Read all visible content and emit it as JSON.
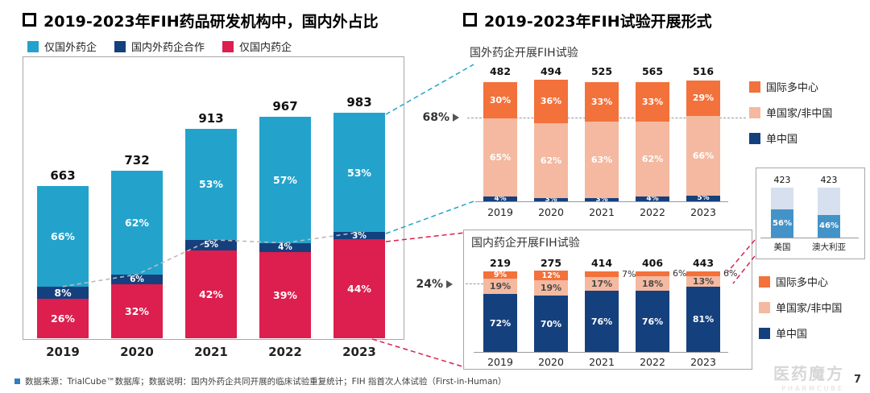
{
  "left_panel": {
    "title": "2019-2023年FIH药品研发机构中，国内外占比",
    "legend": [
      {
        "label": "仅国外药企",
        "color": "#23A3CC"
      },
      {
        "label": "国内外药企合作",
        "color": "#15407E"
      },
      {
        "label": "仅国内药企",
        "color": "#DC1F4E"
      }
    ]
  },
  "right_panel": {
    "title": "2019-2023年FIH试验开展形式",
    "foreign": {
      "subtitle": "国外药企开展FIH试验",
      "callout": "68%",
      "legend": [
        {
          "label": "国际多中心",
          "color": "#F3713B"
        },
        {
          "label": "单国家/非中国",
          "color": "#F4B9A0"
        },
        {
          "label": "单中国",
          "color": "#15407E"
        }
      ]
    },
    "domestic": {
      "subtitle": "国内药企开展FIH试验",
      "callout": "24%",
      "legend": [
        {
          "label": "国际多中心",
          "color": "#F3713B"
        },
        {
          "label": "单国家/非中国",
          "color": "#F4B9A0"
        },
        {
          "label": "单中国",
          "color": "#15407E"
        }
      ]
    }
  },
  "chart_data": [
    {
      "id": "institutions",
      "type": "stacked-bar",
      "title": "2019-2023年FIH药品研发机构中，国内外占比",
      "categories": [
        "2019",
        "2020",
        "2021",
        "2022",
        "2023"
      ],
      "totals": [
        663,
        732,
        913,
        967,
        983
      ],
      "value_unit": "percent",
      "series": [
        {
          "name": "仅国内药企",
          "color": "#DC1F4E",
          "values": [
            26,
            32,
            42,
            39,
            44
          ]
        },
        {
          "name": "国内外药企合作",
          "color": "#15407E",
          "values": [
            8,
            6,
            5,
            4,
            3
          ]
        },
        {
          "name": "仅国外药企",
          "color": "#23A3CC",
          "values": [
            66,
            62,
            53,
            57,
            53
          ]
        }
      ],
      "trend_line": "boundary between 国内外药企合作 and 仅国外药企",
      "legend_position": "top"
    },
    {
      "id": "foreign",
      "type": "stacked-bar-100",
      "title": "国外药企开展FIH试验",
      "categories": [
        "2019",
        "2020",
        "2021",
        "2022",
        "2023"
      ],
      "totals": [
        482,
        494,
        525,
        565,
        516
      ],
      "value_unit": "percent",
      "series": [
        {
          "name": "单中国",
          "color": "#15407E",
          "values": [
            4,
            3,
            3,
            4,
            5
          ]
        },
        {
          "name": "单国家/非中国",
          "color": "#F4B9A0",
          "values": [
            65,
            62,
            63,
            62,
            66
          ]
        },
        {
          "name": "国际多中心",
          "color": "#F3713B",
          "values": [
            30,
            36,
            33,
            33,
            29
          ]
        }
      ],
      "callout": "68%",
      "legend_position": "right"
    },
    {
      "id": "domestic",
      "type": "stacked-bar-100",
      "title": "国内药企开展FIH试验",
      "categories": [
        "2019",
        "2020",
        "2021",
        "2022",
        "2023"
      ],
      "totals": [
        219,
        275,
        414,
        406,
        443
      ],
      "value_unit": "percent",
      "series": [
        {
          "name": "单中国",
          "color": "#15407E",
          "values": [
            72,
            70,
            76,
            76,
            81
          ]
        },
        {
          "name": "单国家/非中国",
          "color": "#F4B9A0",
          "values": [
            19,
            19,
            17,
            18,
            13
          ]
        },
        {
          "name": "国际多中心",
          "color": "#F3713B",
          "values": [
            9,
            12,
            7,
            6,
            6
          ]
        }
      ],
      "outside_labels": [
        "",
        "",
        "7%",
        "6%",
        "6%"
      ],
      "callout": "24%",
      "legend_position": "right"
    },
    {
      "id": "inset",
      "type": "stacked-bar-100",
      "title": "",
      "categories": [
        "美国",
        "澳大利亚"
      ],
      "totals": [
        423,
        423
      ],
      "value_unit": "percent",
      "series": [
        {
          "name": "lower",
          "color": "#4493C8",
          "values": [
            56,
            46
          ]
        },
        {
          "name": "upper",
          "color": "#D6E0EF",
          "values": [
            44,
            54
          ]
        }
      ]
    }
  ],
  "footer": {
    "note": "数据来源：TrialCube™数据库；数据说明：国内外药企共同开展的临床试验重复统计；FIH 指首次人体试验（First-in-Human）",
    "page_number": "7",
    "watermark_cn": "医药魔方",
    "watermark_en": "PHARMCUBE"
  }
}
